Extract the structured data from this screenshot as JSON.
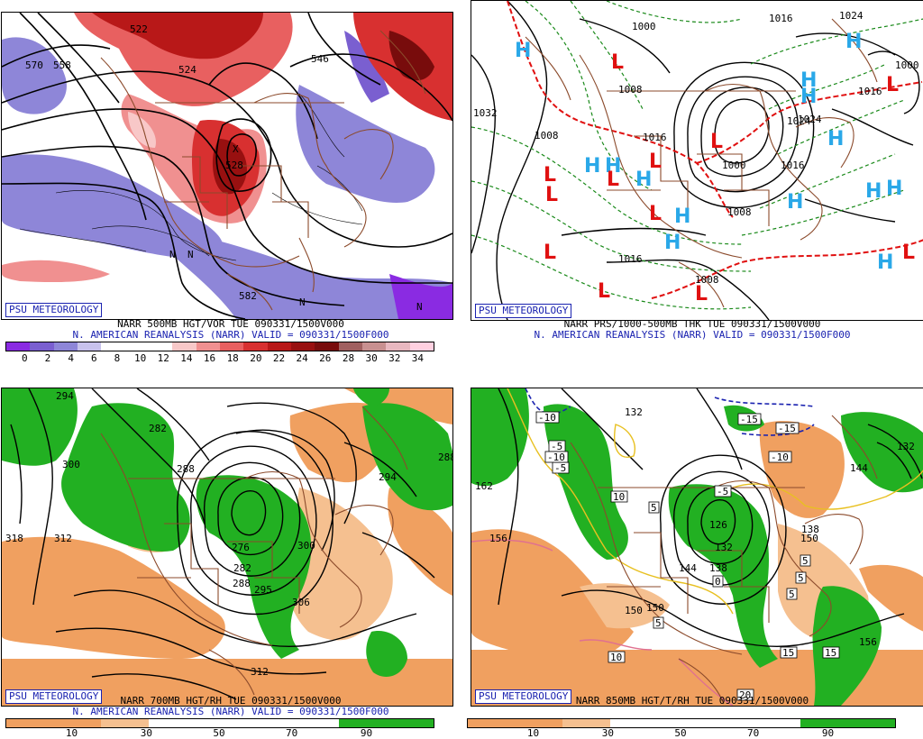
{
  "brand_label": "PSU METEOROLOGY",
  "panels": [
    {
      "id": "p1",
      "caption_line1": "NARR 500MB HGT/VOR TUE 090331/1500V000",
      "caption_line2": "N. AMERICAN REANALYSIS (NARR) VALID = 090331/1500F000",
      "colorbar_colors": [
        "#8a2be2",
        "#7a5fd0",
        "#8e86d8",
        "#c8c2ec",
        "#ffffff",
        "#ffffff",
        "#ffffff",
        "#f8c8c8",
        "#f09090",
        "#e86060",
        "#d83030",
        "#b81818",
        "#981010",
        "#780c0c",
        "#a06060",
        "#c89090",
        "#e8b8c0",
        "#ffd0e0"
      ],
      "colorbar_ticks": [
        "0",
        "2",
        "4",
        "6",
        "8",
        "10",
        "12",
        "14",
        "16",
        "18",
        "20",
        "22",
        "24",
        "26",
        "28",
        "30",
        "32",
        "34"
      ],
      "map_labels": [
        {
          "text": "570",
          "cls": "lbl"
        },
        {
          "text": "558",
          "cls": "lbl"
        },
        {
          "text": "522",
          "cls": "lbl"
        },
        {
          "text": "524",
          "cls": "lbl"
        },
        {
          "text": "546",
          "cls": "lbl"
        },
        {
          "text": "582",
          "cls": "lbl"
        },
        {
          "text": "528",
          "cls": "lbl"
        },
        {
          "text": "N",
          "cls": "lbl"
        },
        {
          "text": "N",
          "cls": "lbl"
        },
        {
          "text": "N",
          "cls": "lbl"
        },
        {
          "text": "N",
          "cls": "lbl"
        },
        {
          "text": "X",
          "cls": "lbl"
        }
      ]
    },
    {
      "id": "p2",
      "caption_line1": "NARR PRS/1000-500MB THK TUE 090331/1500V000",
      "caption_line2": "N. AMERICAN REANALYSIS (NARR) VALID = 090331/1500F000",
      "map_labels": [
        {
          "text": "1000",
          "cls": "lbl"
        },
        {
          "text": "1016",
          "cls": "lbl"
        },
        {
          "text": "1024",
          "cls": "lbl"
        },
        {
          "text": "1032",
          "cls": "lbl"
        },
        {
          "text": "1008",
          "cls": "lbl"
        },
        {
          "text": "1024",
          "cls": "lbl"
        },
        {
          "text": "1016",
          "cls": "lbl"
        },
        {
          "text": "1000",
          "cls": "lbl"
        },
        {
          "text": "1016",
          "cls": "lbl"
        },
        {
          "text": "1008",
          "cls": "lbl"
        },
        {
          "text": "1016",
          "cls": "lbl"
        },
        {
          "text": "1008",
          "cls": "lbl"
        },
        {
          "text": "1000",
          "cls": "lbl"
        },
        {
          "text": "1024",
          "cls": "lbl"
        },
        {
          "text": "1016",
          "cls": "lbl"
        },
        {
          "text": "1008",
          "cls": "lbl"
        }
      ],
      "high_symbol": "H",
      "low_symbol": "L"
    },
    {
      "id": "p3",
      "caption_line1": "NARR 700MB HGT/RH TUE 090331/1500V000",
      "caption_line2": "N. AMERICAN REANALYSIS (NARR) VALID = 090331/1500F000",
      "colorbar_colors": [
        "#f0a060",
        "#f0a060",
        "#f5c090",
        "#ffffff",
        "#ffffff",
        "#ffffff",
        "#ffffff",
        "#22b022",
        "#22b022"
      ],
      "colorbar_ticks": [
        "10",
        "30",
        "50",
        "70",
        "90"
      ],
      "map_labels": [
        {
          "text": "294",
          "cls": "lbl"
        },
        {
          "text": "282",
          "cls": "lbl"
        },
        {
          "text": "288",
          "cls": "lbl"
        },
        {
          "text": "300",
          "cls": "lbl"
        },
        {
          "text": "318",
          "cls": "lbl"
        },
        {
          "text": "312",
          "cls": "lbl"
        },
        {
          "text": "276",
          "cls": "lbl"
        },
        {
          "text": "282",
          "cls": "lbl"
        },
        {
          "text": "288",
          "cls": "lbl"
        },
        {
          "text": "295",
          "cls": "lbl"
        },
        {
          "text": "300",
          "cls": "lbl"
        },
        {
          "text": "306",
          "cls": "lbl"
        },
        {
          "text": "312",
          "cls": "lbl"
        },
        {
          "text": "288",
          "cls": "lbl"
        },
        {
          "text": "294",
          "cls": "lbl"
        }
      ]
    },
    {
      "id": "p4",
      "caption_line1": "NARR 850MB HGT/T/RH TUE 090331/1500V000",
      "colorbar_colors": [
        "#f0a060",
        "#f0a060",
        "#f5c090",
        "#ffffff",
        "#ffffff",
        "#ffffff",
        "#ffffff",
        "#22b022",
        "#22b022"
      ],
      "colorbar_ticks": [
        "10",
        "30",
        "50",
        "70",
        "90"
      ],
      "map_labels": [
        {
          "text": "132",
          "cls": "lbl"
        },
        {
          "text": "162",
          "cls": "lbl"
        },
        {
          "text": "156",
          "cls": "lbl"
        },
        {
          "text": "150",
          "cls": "lbl"
        },
        {
          "text": "144",
          "cls": "lbl"
        },
        {
          "text": "138",
          "cls": "lbl"
        },
        {
          "text": "132",
          "cls": "lbl"
        },
        {
          "text": "126",
          "cls": "lbl"
        },
        {
          "text": "150",
          "cls": "lbl"
        },
        {
          "text": "156",
          "cls": "lbl"
        },
        {
          "text": "138",
          "cls": "lbl"
        },
        {
          "text": "144",
          "cls": "lbl"
        },
        {
          "text": "132",
          "cls": "lbl"
        },
        {
          "text": "150",
          "cls": "lbl"
        }
      ],
      "boxed_labels": [
        "-10",
        "-5",
        "-5",
        "-10",
        "-15",
        "-15",
        "-10",
        "-5",
        "5",
        "5",
        "5",
        "5",
        "15",
        "15",
        "0",
        "10",
        "20",
        "10",
        "5"
      ]
    }
  ]
}
